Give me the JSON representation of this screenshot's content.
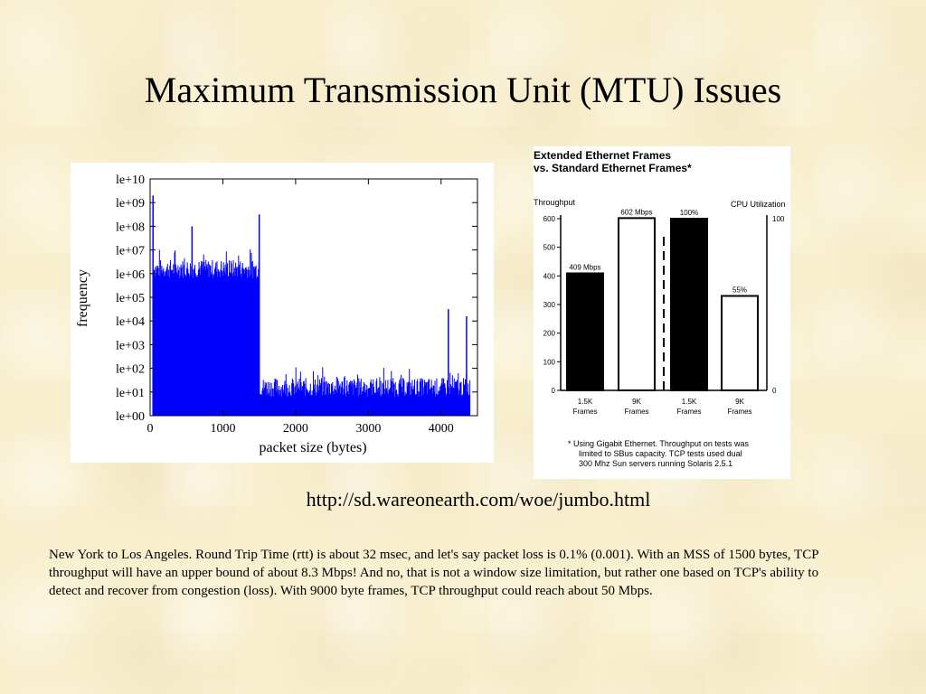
{
  "slide": {
    "title": "Maximum Transmission Unit (MTU) Issues",
    "url": "http://sd.wareonearth.com/woe/jumbo.html",
    "body": "New York to Los Angeles. Round Trip Time (rtt) is about 32 msec, and let's say packet loss is 0.1% (0.001). With an MSS of 1500 bytes, TCP throughput will have an upper bound of about 8.3 Mbps! And no, that is not a window size limitation, but rather one based on TCP's ability to detect and recover from congestion (loss). With 9000 byte frames, TCP throughput could reach about 50 Mbps."
  },
  "chart_data": [
    {
      "type": "bar",
      "description": "histogram",
      "xlabel": "packet size (bytes)",
      "ylabel": "frequency",
      "y_scale": "log",
      "xlim": [
        0,
        4500
      ],
      "ylim_exponent": [
        0,
        10
      ],
      "x_ticks": [
        "0",
        "1000",
        "2000",
        "3000",
        "4000"
      ],
      "y_ticks": [
        "le+00",
        "le+01",
        "le+02",
        "le+03",
        "le+04",
        "le+05",
        "le+06",
        "le+07",
        "le+08",
        "le+09",
        "le+10"
      ],
      "bar_color": "#0000ff",
      "grid": false,
      "segments": [
        {
          "x_range": [
            40,
            1500
          ],
          "log10_frequency_range": [
            5.8,
            6.6
          ]
        },
        {
          "x_range": [
            1500,
            4400
          ],
          "log10_frequency_range": [
            0.8,
            1.6
          ]
        }
      ],
      "peaks": [
        {
          "x": 40,
          "log10_frequency": 9.3
        },
        {
          "x": 576,
          "log10_frequency": 8.0
        },
        {
          "x": 1500,
          "log10_frequency": 8.5
        },
        {
          "x": 4100,
          "log10_frequency": 4.5
        },
        {
          "x": 4350,
          "log10_frequency": 4.2
        }
      ]
    },
    {
      "type": "bar",
      "title": "Extended Ethernet Frames",
      "subtitle": "vs. Standard Ethernet Frames*",
      "ylabel": "Throughput",
      "y2label": "CPU Utilization",
      "ylim": [
        0,
        600
      ],
      "y_ticks": [
        "0",
        "100",
        "200",
        "300",
        "400",
        "500",
        "600"
      ],
      "y2lim": [
        0,
        100
      ],
      "y2_ticks": [
        "0",
        "100"
      ],
      "groups": [
        {
          "name": "Throughput",
          "axis": "left",
          "bars": [
            {
              "label_line1": "1.5K",
              "label_line2": "Frames",
              "value": 409,
              "data_label": "409 Mbps",
              "fill": "#000000"
            },
            {
              "label_line1": "9K",
              "label_line2": "Frames",
              "value": 602,
              "data_label": "602 Mbps",
              "fill": "#ffffff"
            }
          ]
        },
        {
          "name": "CPU Utilization",
          "axis": "right",
          "bars": [
            {
              "label_line1": "1.5K",
              "label_line2": "Frames",
              "value": 100,
              "data_label": "100%",
              "fill": "#000000"
            },
            {
              "label_line1": "9K",
              "label_line2": "Frames",
              "value": 55,
              "data_label": "55%",
              "fill": "#ffffff"
            }
          ]
        }
      ],
      "footnote": [
        "* Using Gigabit Ethernet.  Throughput on tests was",
        "limited to SBus capacity. TCP tests used dual",
        "300 Mhz Sun servers running Solaris 2.5.1"
      ]
    }
  ]
}
